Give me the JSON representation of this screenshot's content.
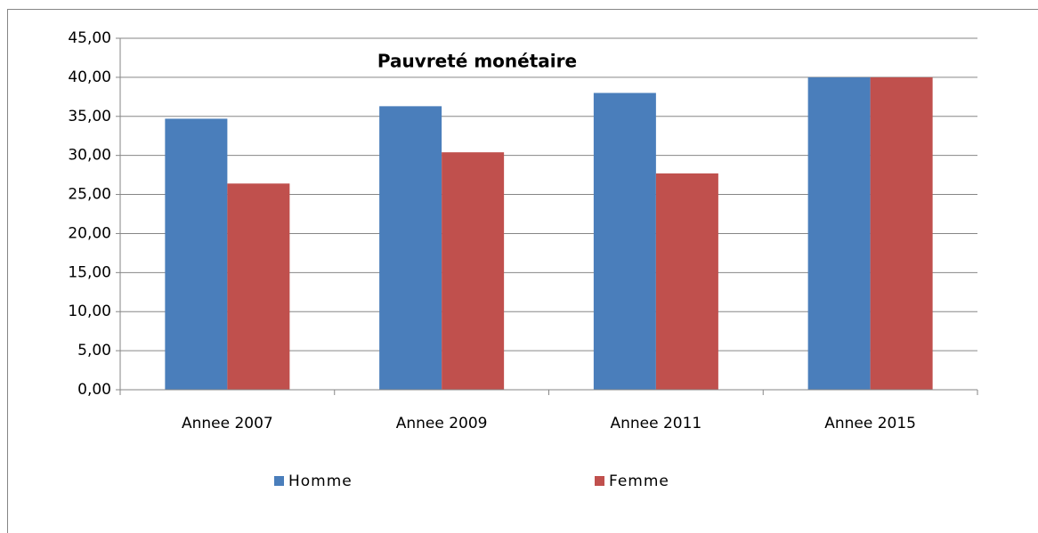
{
  "chart_data": {
    "type": "bar",
    "title": "Pauvreté monétaire",
    "categories": [
      "Annee 2007",
      "Annee 2009",
      "Annee 2011",
      "Annee 2015"
    ],
    "series": [
      {
        "name": "Homme",
        "color": "#4a7ebb",
        "values": [
          34.7,
          36.3,
          38.0,
          40.0
        ]
      },
      {
        "name": "Femme",
        "color": "#c0504d",
        "values": [
          26.4,
          30.4,
          27.7,
          40.0
        ]
      }
    ],
    "ylim": [
      0,
      45
    ],
    "yticks": [
      {
        "value": 0,
        "label": "0,00"
      },
      {
        "value": 5,
        "label": "5,00"
      },
      {
        "value": 10,
        "label": "10,00"
      },
      {
        "value": 15,
        "label": "15,00"
      },
      {
        "value": 20,
        "label": "20,00"
      },
      {
        "value": 25,
        "label": "25,00"
      },
      {
        "value": 30,
        "label": "30,00"
      },
      {
        "value": 35,
        "label": "35,00"
      },
      {
        "value": 40,
        "label": "40,00"
      },
      {
        "value": 45,
        "label": "45,00"
      }
    ],
    "grid": true,
    "legend": "bottom"
  }
}
